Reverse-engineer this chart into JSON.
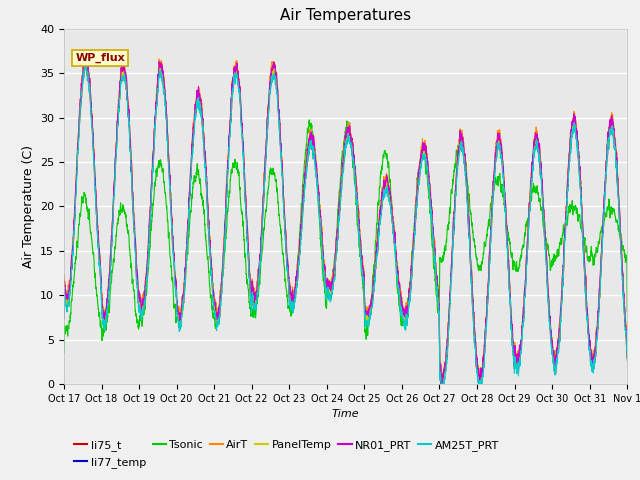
{
  "title": "Air Temperatures",
  "xlabel": "Time",
  "ylabel": "Air Temperature (C)",
  "ylim": [
    0,
    40
  ],
  "n_days": 15,
  "x_tick_labels": [
    "Oct 17",
    "Oct 18",
    "Oct 19",
    "Oct 20",
    "Oct 21",
    "Oct 22",
    "Oct 23",
    "Oct 24",
    "Oct 25",
    "Oct 26",
    "Oct 27",
    "Oct 28",
    "Oct 29",
    "Oct 30",
    "Oct 31",
    "Nov 1"
  ],
  "series_colors": {
    "li75_t": "#cc0000",
    "li77_temp": "#0000cc",
    "Tsonic": "#00cc00",
    "AirT": "#ff8800",
    "PanelTemp": "#cccc00",
    "NR01_PRT": "#cc00cc",
    "AM25T_PRT": "#00cccc"
  },
  "annotation_text": "WP_flux",
  "bg_color": "#e8e8e8",
  "fig_bg_color": "#f0f0f0",
  "title_fontsize": 11,
  "tick_fontsize": 7,
  "ylabel_fontsize": 9,
  "xlabel_fontsize": 8,
  "legend_fontsize": 8,
  "line_width": 0.8
}
